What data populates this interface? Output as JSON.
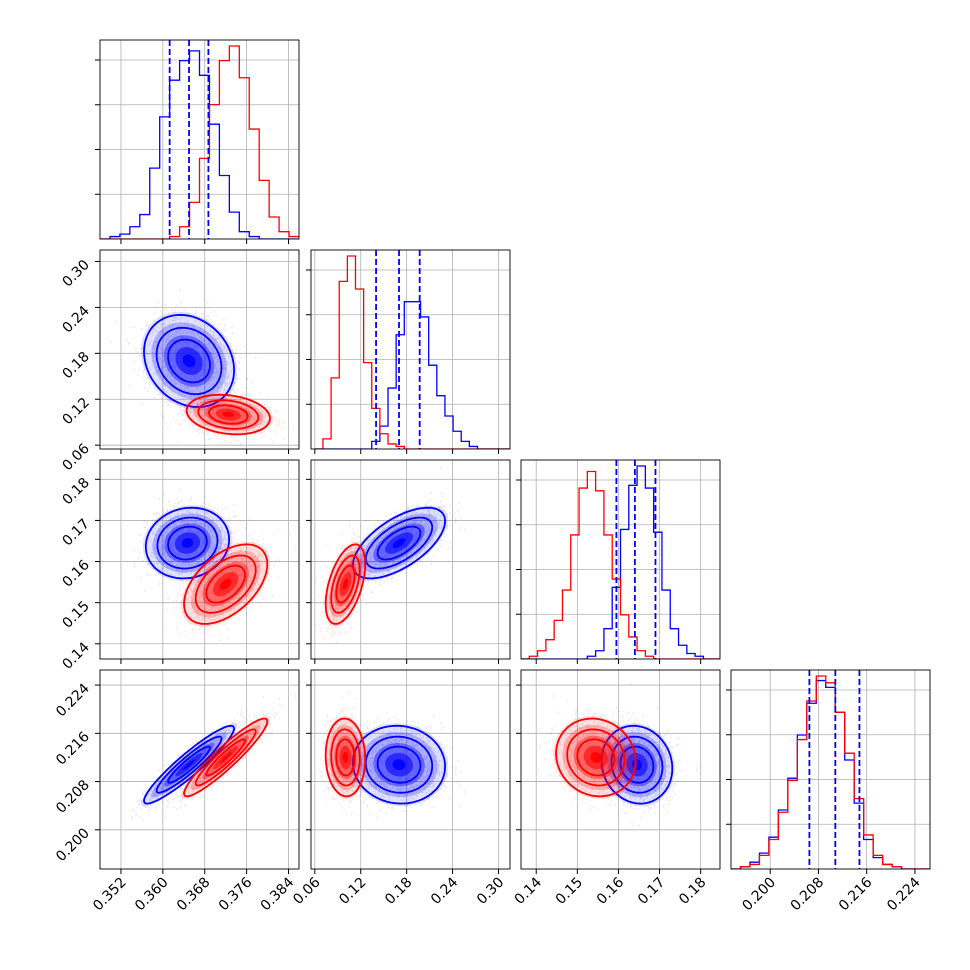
{
  "chart_data": {
    "type": "corner",
    "parameters": [
      {
        "range": [
          0.348,
          0.386
        ],
        "ticks": [
          "0.352",
          "0.360",
          "0.368",
          "0.376",
          "0.384"
        ],
        "tick_values": [
          0.352,
          0.36,
          0.368,
          0.376,
          0.384
        ]
      },
      {
        "range": [
          0.055,
          0.315
        ],
        "ticks": [
          "0.06",
          "0.12",
          "0.18",
          "0.24",
          "0.30"
        ],
        "tick_values": [
          0.06,
          0.12,
          0.18,
          0.24,
          0.3
        ]
      },
      {
        "range": [
          0.1363,
          0.1847
        ],
        "ticks": [
          "0.14",
          "0.15",
          "0.16",
          "0.17",
          "0.18"
        ],
        "tick_values": [
          0.14,
          0.15,
          0.16,
          0.17,
          0.18
        ]
      },
      {
        "range": [
          0.1935,
          0.2265
        ],
        "ticks": [
          "0.200",
          "0.208",
          "0.216",
          "0.224"
        ],
        "tick_values": [
          0.2,
          0.208,
          0.216,
          0.224
        ]
      }
    ],
    "colors": {
      "blue": "#0000ff",
      "red": "#ff0000"
    },
    "grid": true,
    "quantile_lines": {
      "color": "#0000ff",
      "values": [
        [
          0.3613,
          0.365,
          0.3687
        ],
        [
          0.14,
          0.17,
          0.197
        ],
        [
          0.1595,
          0.164,
          0.169
        ],
        [
          0.2065,
          0.2108,
          0.2148
        ]
      ]
    },
    "series": [
      {
        "color": "blue",
        "histograms": [
          {
            "edges_range": [
              0.348,
              0.386
            ],
            "counts": [
              0,
              1,
              2,
              5,
              10,
              29,
              50,
              65,
              73,
              77,
              67,
              47,
              26,
              11,
              3,
              1,
              0,
              0,
              0,
              0
            ]
          },
          {
            "edges_range": [
              0.06,
              0.315
            ],
            "counts": [
              0,
              0,
              0,
              0,
              0,
              0,
              0,
              3,
              9,
              24,
              45,
              58,
              58,
              52,
              33,
              21,
              13,
              7,
              3,
              1,
              0,
              0,
              0,
              0
            ]
          },
          {
            "edges_range": [
              0.1363,
              0.1847
            ],
            "counts": [
              0,
              0,
              0,
              0,
              0,
              0,
              0,
              0,
              1,
              3,
              11,
              26,
              47,
              63,
              70,
              62,
              46,
              25,
              11,
              5,
              2,
              1,
              0,
              0
            ]
          },
          {
            "edges_range": [
              0.1935,
              0.2265
            ],
            "counts": [
              0,
              1,
              3,
              7,
              14,
              26,
              40,
              59,
              73,
              83,
              80,
              69,
              48,
              29,
              13,
              5,
              2,
              1,
              0,
              0,
              0
            ]
          }
        ],
        "scatter_2d": [
          {
            "x_param": 0,
            "y_param": 1,
            "center": [
              0.365,
              0.17
            ],
            "sd": [
              0.004,
              0.028
            ],
            "rho": -0.2
          },
          {
            "x_param": 0,
            "y_param": 2,
            "center": [
              0.3647,
              0.1645
            ],
            "sd": [
              0.0037,
              0.004
            ],
            "rho": 0.1
          },
          {
            "x_param": 0,
            "y_param": 3,
            "center": [
              0.365,
              0.2108
            ],
            "sd": [
              0.004,
              0.003
            ],
            "rho": 0.93
          },
          {
            "x_param": 1,
            "y_param": 2,
            "center": [
              0.17,
              0.1645
            ],
            "sd": [
              0.028,
              0.004
            ],
            "rho": 0.62
          },
          {
            "x_param": 1,
            "y_param": 3,
            "center": [
              0.17,
              0.2108
            ],
            "sd": [
              0.028,
              0.003
            ],
            "rho": -0.05
          },
          {
            "x_param": 2,
            "y_param": 3,
            "center": [
              0.1645,
              0.2108
            ],
            "sd": [
              0.004,
              0.003
            ],
            "rho": -0.1
          }
        ]
      },
      {
        "color": "red",
        "histograms": [
          {
            "edges_range": [
              0.348,
              0.386
            ],
            "counts": [
              0,
              0,
              0,
              0,
              0,
              0,
              0,
              1,
              5,
              15,
              33,
              55,
              73,
              79,
              66,
              45,
              24,
              9,
              3,
              1
            ]
          },
          {
            "edges_range": [
              0.06,
              0.315
            ],
            "counts": [
              0,
              4,
              28,
              66,
              76,
              63,
              34,
              16,
              6,
              2,
              1,
              0,
              0,
              0,
              0,
              0,
              0,
              0,
              0,
              0,
              0,
              0,
              0,
              0
            ]
          },
          {
            "edges_range": [
              0.1363,
              0.1847
            ],
            "counts": [
              0,
              1,
              3,
              7,
              14,
              25,
              45,
              62,
              68,
              61,
              45,
              29,
              16,
              8,
              3,
              1,
              0,
              0,
              0,
              0,
              0,
              0,
              0,
              0
            ]
          },
          {
            "edges_range": [
              0.1935,
              0.2265
            ],
            "counts": [
              0,
              1,
              2,
              6,
              13,
              25,
              39,
              57,
              74,
              85,
              82,
              69,
              51,
              31,
              15,
              6,
              2,
              1,
              0,
              0,
              0
            ]
          }
        ],
        "scatter_2d": [
          {
            "x_param": 0,
            "y_param": 1,
            "center": [
              0.3725,
              0.1
            ],
            "sd": [
              0.0037,
              0.012
            ],
            "rho": -0.2
          },
          {
            "x_param": 0,
            "y_param": 2,
            "center": [
              0.372,
              0.1545
            ],
            "sd": [
              0.0037,
              0.0045
            ],
            "rho": 0.5
          },
          {
            "x_param": 0,
            "y_param": 3,
            "center": [
              0.372,
              0.212
            ],
            "sd": [
              0.0037,
              0.003
            ],
            "rho": 0.93
          },
          {
            "x_param": 1,
            "y_param": 2,
            "center": [
              0.1,
              0.1545
            ],
            "sd": [
              0.012,
              0.0045
            ],
            "rho": 0.5
          },
          {
            "x_param": 1,
            "y_param": 3,
            "center": [
              0.1,
              0.212
            ],
            "sd": [
              0.012,
              0.003
            ],
            "rho": -0.05
          },
          {
            "x_param": 2,
            "y_param": 3,
            "center": [
              0.1545,
              0.212
            ],
            "sd": [
              0.0045,
              0.003
            ],
            "rho": -0.1
          }
        ]
      }
    ]
  }
}
